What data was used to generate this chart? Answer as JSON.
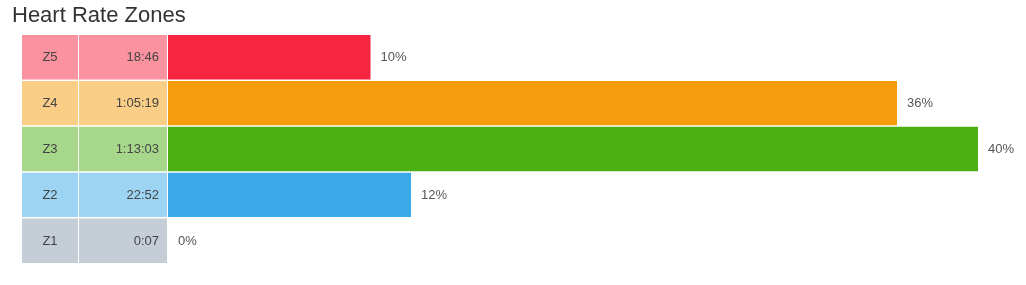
{
  "chart_data": {
    "type": "bar",
    "orientation": "horizontal",
    "title": "Heart Rate Zones",
    "categories": [
      "Z5",
      "Z4",
      "Z3",
      "Z2",
      "Z1"
    ],
    "values": [
      10,
      36,
      40,
      12,
      0
    ],
    "colors": [
      "#f7253f",
      "#f59c0c",
      "#4caf14",
      "#3ba8e8",
      "#8b9dad"
    ],
    "value_labels": [
      "10%",
      "36%",
      "40%",
      "12%",
      "0%"
    ],
    "annotations": [
      "18:46",
      "1:05:19",
      "1:13:03",
      "22:52",
      "0:07"
    ]
  }
}
